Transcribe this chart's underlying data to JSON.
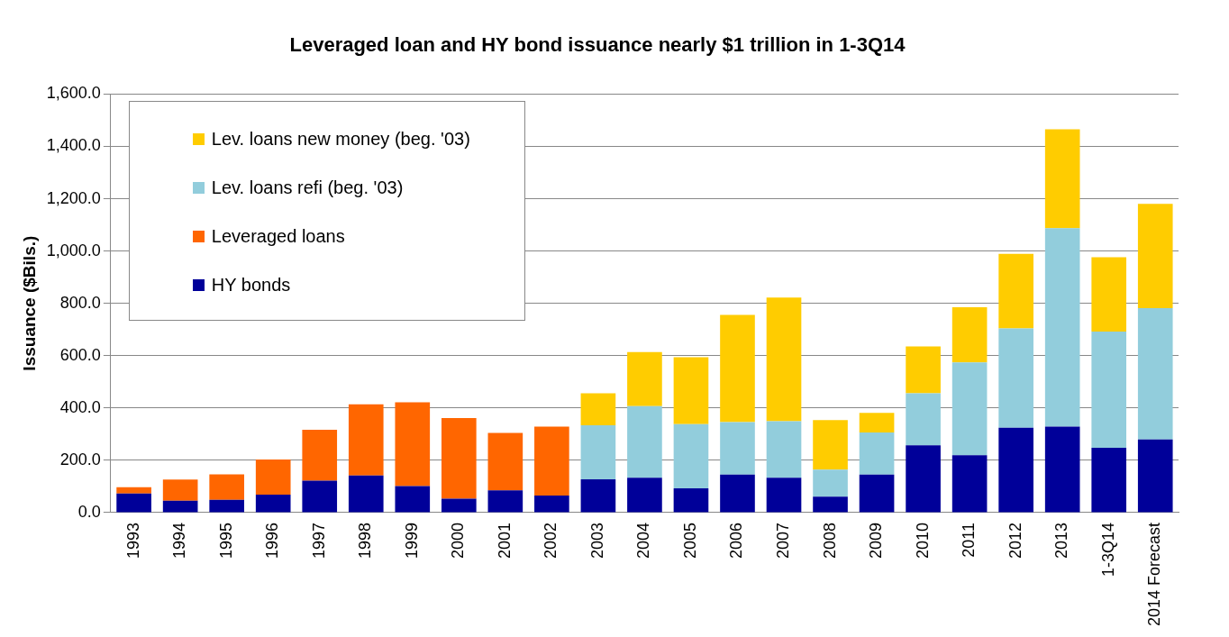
{
  "chart_data": {
    "type": "bar",
    "title": "Leveraged loan and HY bond issuance nearly $1 trillion in 1-3Q14",
    "ylabel": "Issuance ($Bils.)",
    "categories": [
      "1993",
      "1994",
      "1995",
      "1996",
      "1997",
      "1998",
      "1999",
      "2000",
      "2001",
      "2002",
      "2003",
      "2004",
      "2005",
      "2006",
      "2007",
      "2008",
      "2009",
      "2010",
      "2011",
      "2012",
      "2013",
      "1-3Q14",
      "2014 Forecast"
    ],
    "stacked": true,
    "grid": "y",
    "legend": "top left",
    "ylim": [
      0,
      1600
    ],
    "yticks": [
      {
        "value": 0,
        "label": "0.0"
      },
      {
        "value": 200,
        "label": "200.0"
      },
      {
        "value": 400,
        "label": "400.0"
      },
      {
        "value": 600,
        "label": "600.0"
      },
      {
        "value": 800,
        "label": "800.0"
      },
      {
        "value": 1000,
        "label": "1,000.0"
      },
      {
        "value": 1200,
        "label": "1,200.0"
      },
      {
        "value": 1400,
        "label": "1,400.0"
      },
      {
        "value": 1600,
        "label": "1,600.0"
      }
    ],
    "series": [
      {
        "name": "HY bonds",
        "color": "#000099",
        "values": [
          73,
          45,
          49,
          69,
          122,
          142,
          101,
          53,
          85,
          65,
          127,
          133,
          93,
          145,
          133,
          61,
          145,
          257,
          219,
          324,
          329,
          248,
          280
        ]
      },
      {
        "name": "Leveraged loans",
        "color": "#ff6600",
        "values": [
          24,
          81,
          97,
          134,
          195,
          272,
          321,
          308,
          220,
          264,
          null,
          null,
          null,
          null,
          null,
          null,
          null,
          null,
          null,
          null,
          null,
          null,
          null
        ]
      },
      {
        "name": "Lev. loans refi (beg. '03)",
        "color": "#92cddc",
        "values": [
          null,
          null,
          null,
          null,
          null,
          null,
          null,
          null,
          null,
          null,
          207,
          274,
          245,
          201,
          216,
          103,
          161,
          199,
          355,
          380,
          758,
          444,
          502
        ]
      },
      {
        "name": "Lev. loans new money (beg. '03)",
        "color": "#ffcc00",
        "values": [
          null,
          null,
          null,
          null,
          null,
          null,
          null,
          null,
          null,
          null,
          122,
          207,
          256,
          410,
          473,
          190,
          75,
          179,
          211,
          285,
          378,
          284,
          398
        ]
      }
    ]
  }
}
